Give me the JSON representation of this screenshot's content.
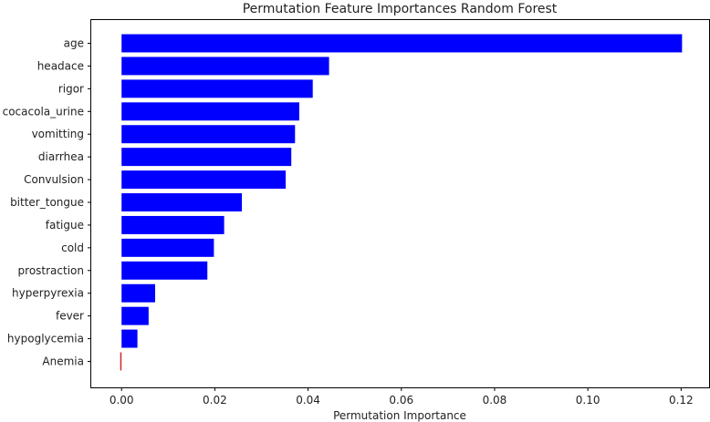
{
  "chart_data": {
    "type": "bar",
    "orientation": "horizontal",
    "title": "Permutation Feature Importances Random Forest",
    "xlabel": "Permutation Importance",
    "ylabel": "",
    "categories": [
      "age",
      "headace",
      "rigor",
      "cocacola_urine",
      "vomitting",
      "diarrhea",
      "Convulsion",
      "bitter_tongue",
      "fatigue",
      "cold",
      "prostraction",
      "hyperpyrexia",
      "fever",
      "hypoglycemia",
      "Anemia"
    ],
    "values": [
      0.1202,
      0.0445,
      0.041,
      0.0381,
      0.0372,
      0.0364,
      0.0352,
      0.0258,
      0.022,
      0.0198,
      0.0184,
      0.0072,
      0.0058,
      0.0034,
      -0.0003
    ],
    "xlim": [
      -0.0065,
      0.126
    ],
    "xticks": [
      "0.00",
      "0.02",
      "0.04",
      "0.06",
      "0.08",
      "0.10",
      "0.12"
    ],
    "xtick_values": [
      0.0,
      0.02,
      0.04,
      0.06,
      0.08,
      0.1,
      0.12
    ],
    "grid": false,
    "colors": {
      "positive": "#0000ff",
      "negative": "#d62728"
    }
  }
}
